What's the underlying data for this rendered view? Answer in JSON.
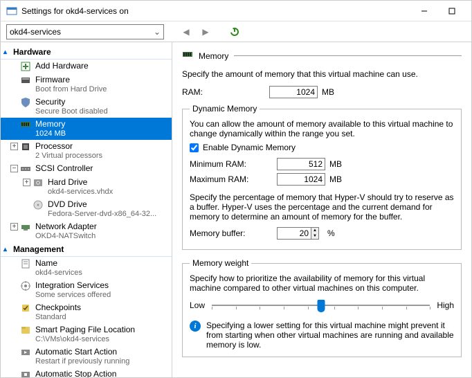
{
  "window": {
    "title": "Settings for okd4-services on"
  },
  "toolbar": {
    "vm_select": "okd4-services"
  },
  "tree": {
    "hardware_label": "Hardware",
    "management_label": "Management",
    "items": [
      {
        "label": "Add Hardware",
        "sub": ""
      },
      {
        "label": "Firmware",
        "sub": "Boot from Hard Drive"
      },
      {
        "label": "Security",
        "sub": "Secure Boot disabled"
      },
      {
        "label": "Memory",
        "sub": "1024 MB",
        "selected": true
      },
      {
        "label": "Processor",
        "sub": "2 Virtual processors",
        "expandable": true
      },
      {
        "label": "SCSI Controller",
        "sub": "",
        "expandable": true,
        "expanded": true
      },
      {
        "label": "Hard Drive",
        "sub": "okd4-services.vhdx",
        "indent": true,
        "expandable": true
      },
      {
        "label": "DVD Drive",
        "sub": "Fedora-Server-dvd-x86_64-32...",
        "indent": true
      },
      {
        "label": "Network Adapter",
        "sub": "OKD4-NATSwitch",
        "expandable": true
      }
    ],
    "mgmt": [
      {
        "label": "Name",
        "sub": "okd4-services"
      },
      {
        "label": "Integration Services",
        "sub": "Some services offered"
      },
      {
        "label": "Checkpoints",
        "sub": "Standard"
      },
      {
        "label": "Smart Paging File Location",
        "sub": "C:\\VMs\\okd4-services"
      },
      {
        "label": "Automatic Start Action",
        "sub": "Restart if previously running"
      },
      {
        "label": "Automatic Stop Action",
        "sub": ""
      }
    ]
  },
  "panel": {
    "title": "Memory",
    "intro": "Specify the amount of memory that this virtual machine can use.",
    "ram_label": "RAM:",
    "ram_value": "1024",
    "ram_unit": "MB",
    "dyn": {
      "legend": "Dynamic Memory",
      "desc": "You can allow the amount of memory available to this virtual machine to change dynamically within the range you set.",
      "enable_label": "Enable Dynamic Memory",
      "enable_checked": true,
      "min_label": "Minimum RAM:",
      "min_value": "512",
      "max_label": "Maximum RAM:",
      "max_value": "1024",
      "unit": "MB",
      "buffer_desc": "Specify the percentage of memory that Hyper-V should try to reserve as a buffer. Hyper-V uses the percentage and the current demand for memory to determine an amount of memory for the buffer.",
      "buffer_label": "Memory buffer:",
      "buffer_value": "20",
      "buffer_unit": "%"
    },
    "weight": {
      "legend": "Memory weight",
      "desc": "Specify how to prioritize the availability of memory for this virtual machine compared to other virtual machines on this computer.",
      "low": "Low",
      "high": "High",
      "position_pct": 50,
      "info": "Specifying a lower setting for this virtual machine might prevent it from starting when other virtual machines are running and available memory is low."
    }
  },
  "colors": {
    "selection": "#0078d7",
    "link": "#0066cc",
    "subtext": "#666666"
  }
}
